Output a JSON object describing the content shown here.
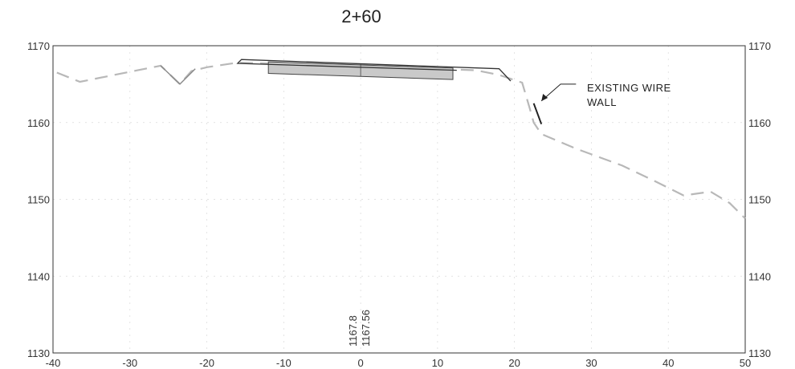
{
  "title": "2+60",
  "section": {
    "x_ticks": [
      -40,
      -30,
      -20,
      -10,
      0,
      10,
      20,
      30,
      40,
      50
    ],
    "x_tick_labels": [
      "-40",
      "-30",
      "-20",
      "-10",
      "0",
      "10",
      "20",
      "30",
      "40",
      "50"
    ],
    "y_ticks": [
      1130,
      1140,
      1150,
      1160,
      1170
    ],
    "y_tick_labels": [
      "1130",
      "1140",
      "1150",
      "1160",
      "1170"
    ],
    "xlim": [
      -40,
      50
    ],
    "ylim": [
      1130,
      1170
    ],
    "existing_ground": [
      [
        -39.5,
        1166.5
      ],
      [
        -36.5,
        1165.3
      ],
      [
        -33,
        1166.0
      ],
      [
        -29,
        1166.8
      ],
      [
        -26,
        1167.4
      ],
      [
        -23.5,
        1165.0
      ],
      [
        -22,
        1166.7
      ],
      [
        -20,
        1167.2
      ],
      [
        -16,
        1167.8
      ],
      [
        -9,
        1167.6
      ],
      [
        0,
        1167.3
      ],
      [
        10,
        1167.0
      ],
      [
        15,
        1166.8
      ],
      [
        18,
        1166.2
      ],
      [
        21,
        1165.2
      ],
      [
        21.5,
        1163.5
      ],
      [
        22,
        1161.8
      ],
      [
        22.5,
        1160.0
      ],
      [
        23.5,
        1158.5
      ],
      [
        28,
        1156.6
      ],
      [
        34,
        1154.4
      ],
      [
        38,
        1152.5
      ],
      [
        42,
        1150.5
      ],
      [
        45.5,
        1151.0
      ],
      [
        48,
        1149.5
      ],
      [
        50,
        1147.5
      ]
    ],
    "ditch": [
      [
        -26,
        1167.4
      ],
      [
        -23.5,
        1165.0
      ],
      [
        -21.5,
        1167.0
      ]
    ],
    "proposed_template": [
      [
        -16,
        1167.7
      ],
      [
        -15.5,
        1168.2
      ],
      [
        18,
        1167.0
      ],
      [
        19.5,
        1165.4
      ],
      [
        18,
        1167.0
      ],
      [
        -15.5,
        1168.2
      ],
      [
        -16,
        1167.7
      ],
      [
        12.5,
        1166.8
      ]
    ],
    "pavement_box": [
      [
        -12,
        1167.9
      ],
      [
        12,
        1167.1
      ],
      [
        12,
        1165.6
      ],
      [
        -12,
        1166.4
      ]
    ],
    "wall_segment": [
      [
        22.5,
        1162.5
      ],
      [
        23.5,
        1159.8
      ]
    ],
    "leader": [
      [
        28,
        1165.0
      ],
      [
        26,
        1165.0
      ],
      [
        23.5,
        1162.8
      ]
    ],
    "annotation": [
      "EXISTING WIRE",
      "WALL"
    ],
    "centerline_labels": [
      "1167.8",
      "1167.56"
    ]
  }
}
